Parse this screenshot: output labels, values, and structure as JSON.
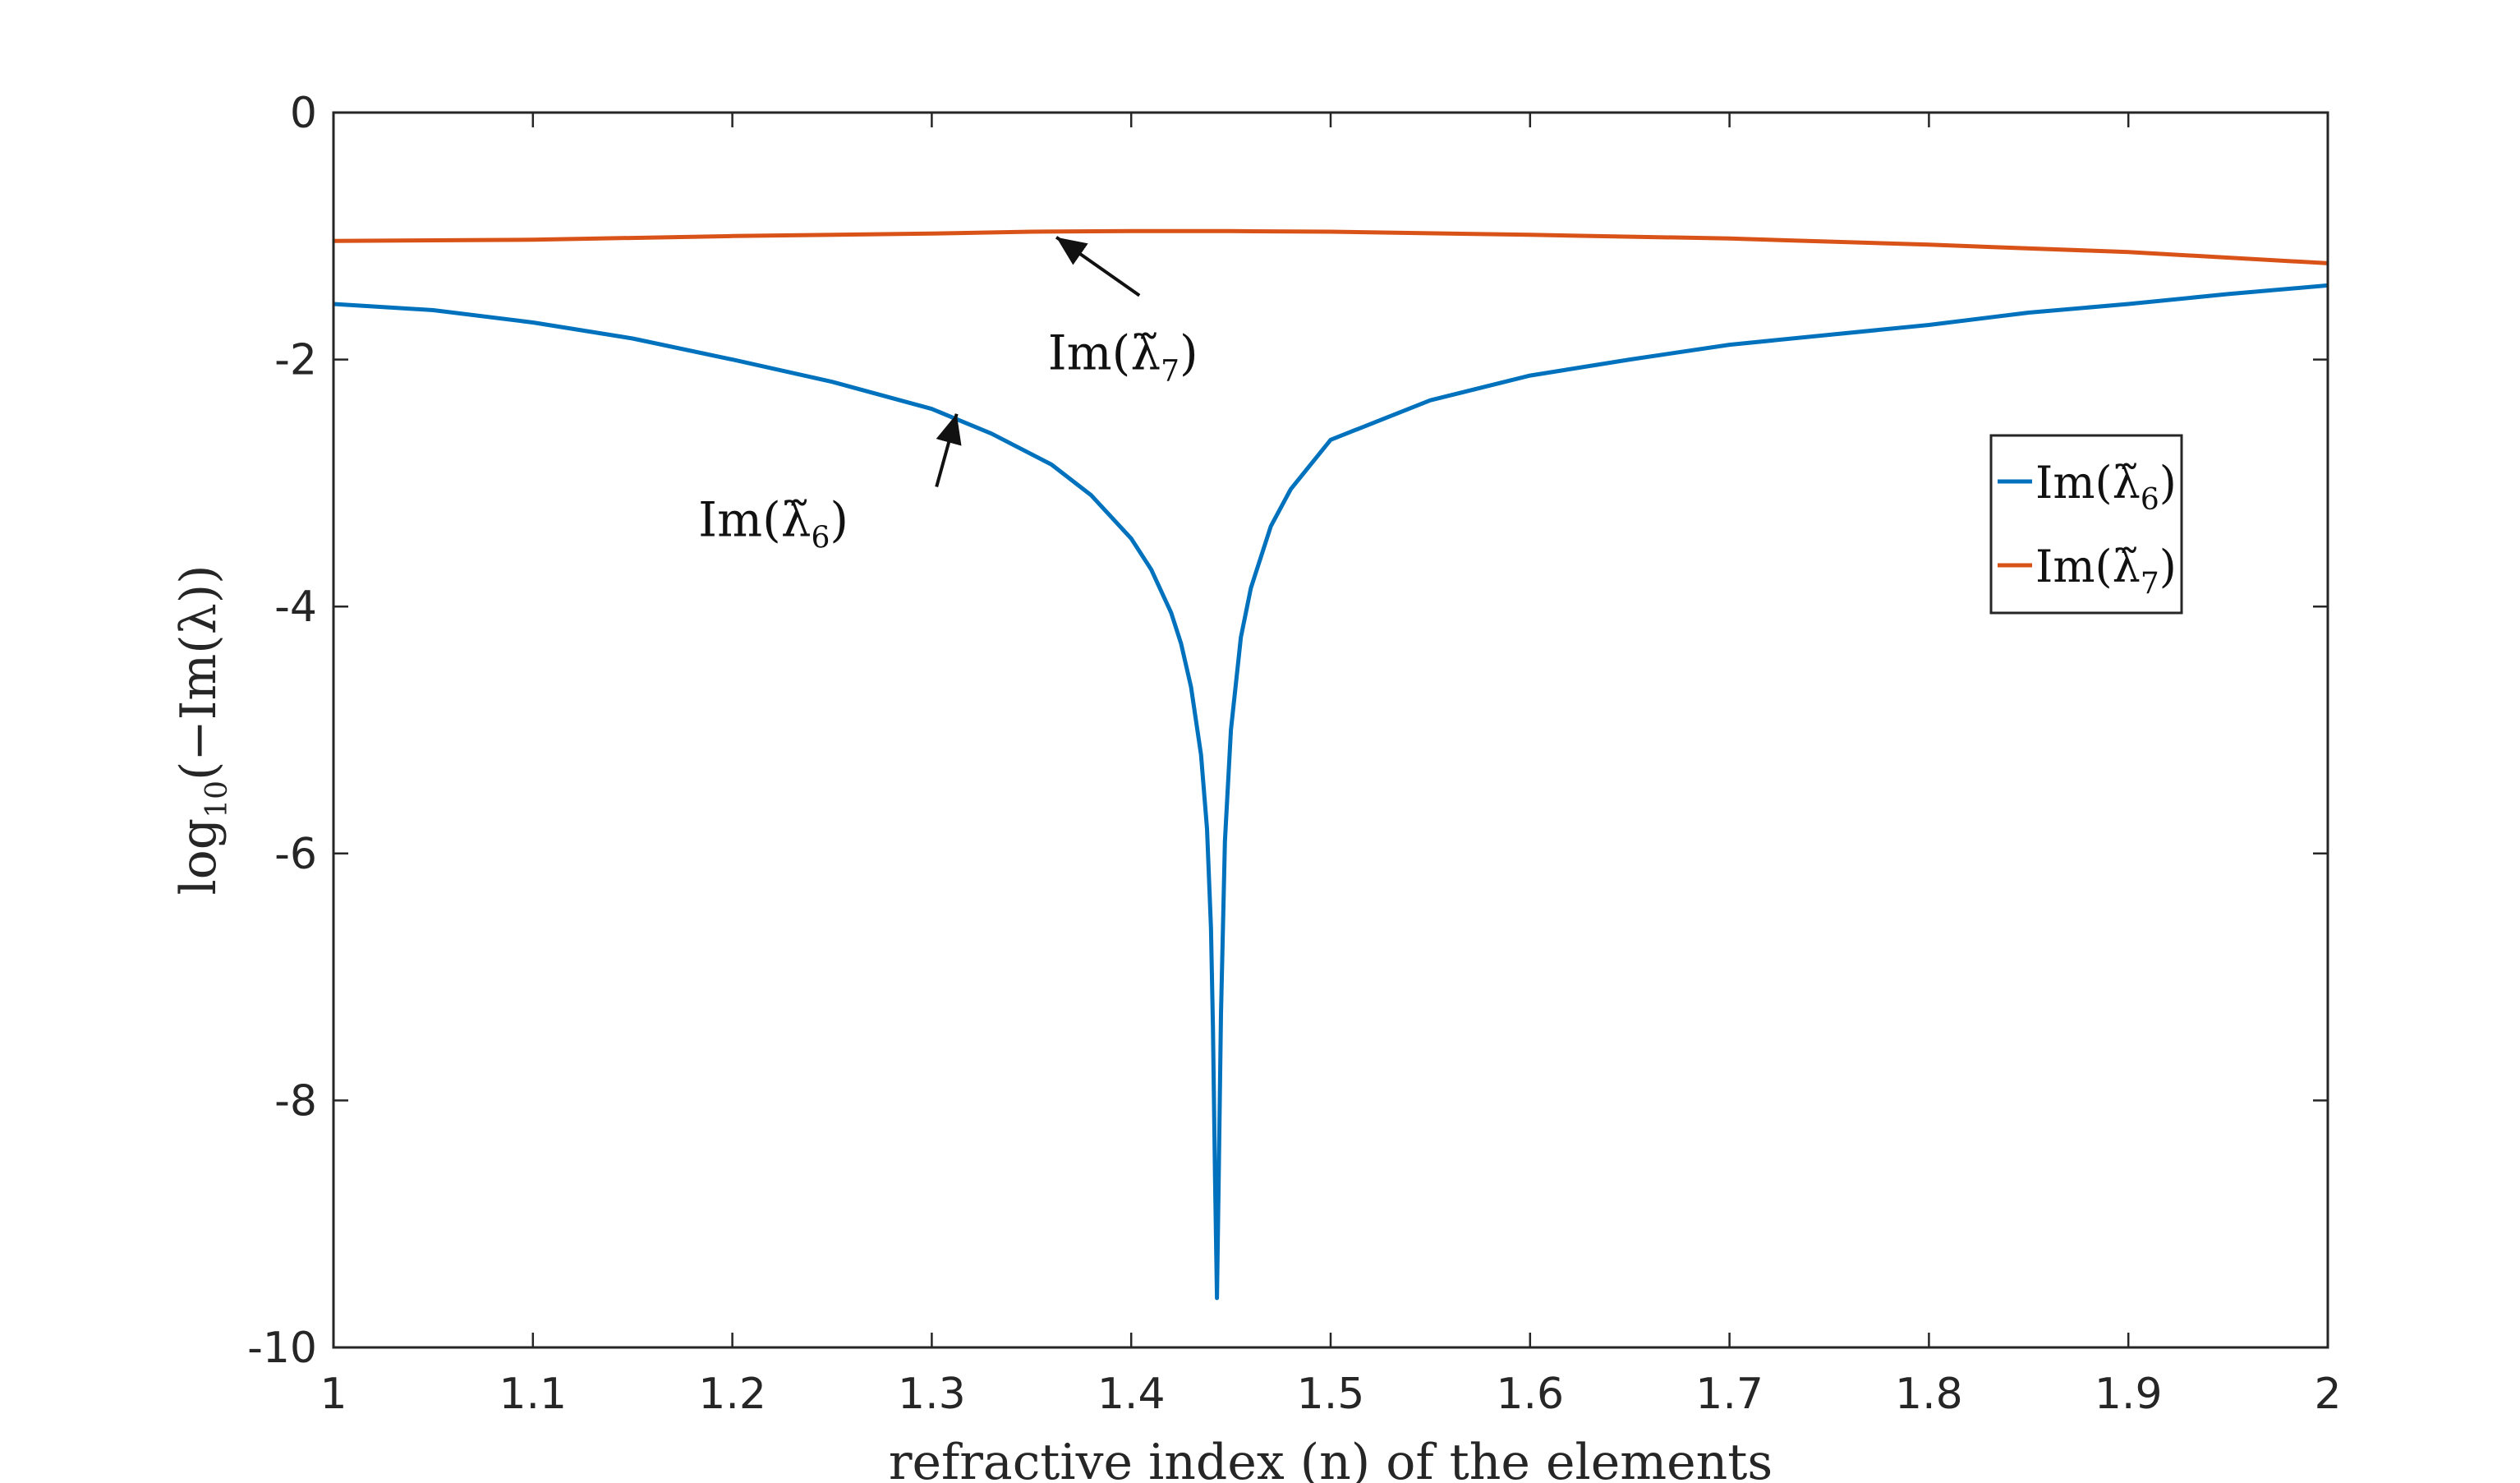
{
  "chart_data": {
    "type": "line",
    "title": "",
    "xlabel": "refractive index (n) of the elements",
    "ylabel": "log10(−Im(λ))",
    "xlim": [
      1,
      2
    ],
    "ylim": [
      -10,
      0
    ],
    "xticks": [
      1,
      1.1,
      1.2,
      1.3,
      1.4,
      1.5,
      1.6,
      1.7,
      1.8,
      1.9,
      2
    ],
    "xtick_labels": [
      "1",
      "1.1",
      "1.2",
      "1.3",
      "1.4",
      "1.5",
      "1.6",
      "1.7",
      "1.8",
      "1.9",
      "2"
    ],
    "yticks": [
      0,
      -2,
      -4,
      -6,
      -8,
      -10
    ],
    "ytick_labels": [
      "0",
      "-2",
      "-4",
      "-6",
      "-8",
      "-10"
    ],
    "grid": false,
    "legend_position": "top-right",
    "series": [
      {
        "name": "Im(λ̃6)",
        "label_base": "Im(",
        "label_symbol": "λ̃",
        "label_sub": "6",
        "label_close": ")",
        "color": "#0072BD",
        "x": [
          1.0,
          1.05,
          1.1,
          1.15,
          1.2,
          1.25,
          1.3,
          1.33,
          1.36,
          1.38,
          1.4,
          1.41,
          1.42,
          1.425,
          1.43,
          1.435,
          1.438,
          1.44,
          1.441,
          1.442,
          1.443,
          1.444,
          1.445,
          1.447,
          1.45,
          1.455,
          1.46,
          1.47,
          1.48,
          1.5,
          1.55,
          1.6,
          1.65,
          1.7,
          1.75,
          1.8,
          1.85,
          1.9,
          1.95,
          2.0
        ],
        "y": [
          -1.55,
          -1.6,
          -1.7,
          -1.83,
          -2.0,
          -2.18,
          -2.4,
          -2.6,
          -2.85,
          -3.1,
          -3.45,
          -3.7,
          -4.05,
          -4.3,
          -4.65,
          -5.2,
          -5.8,
          -6.6,
          -7.4,
          -8.6,
          -9.6,
          -8.5,
          -7.3,
          -5.9,
          -5.0,
          -4.25,
          -3.85,
          -3.35,
          -3.05,
          -2.65,
          -2.33,
          -2.13,
          -2.0,
          -1.88,
          -1.8,
          -1.72,
          -1.62,
          -1.55,
          -1.47,
          -1.4
        ]
      },
      {
        "name": "Im(λ̃7)",
        "label_base": "Im(",
        "label_symbol": "λ̃",
        "label_sub": "7",
        "label_close": ")",
        "color": "#D95319",
        "x": [
          1.0,
          1.1,
          1.2,
          1.3,
          1.35,
          1.4,
          1.45,
          1.5,
          1.6,
          1.7,
          1.8,
          1.9,
          2.0
        ],
        "y": [
          -1.04,
          -1.03,
          -1.0,
          -0.98,
          -0.965,
          -0.96,
          -0.96,
          -0.965,
          -0.99,
          -1.02,
          -1.07,
          -1.13,
          -1.22
        ]
      }
    ],
    "annotations": [
      {
        "label_base": "Im(",
        "label_symbol": "λ̃",
        "label_sub": "7",
        "label_close": ")",
        "point_x": 1.36,
        "point_y": -0.97,
        "text_x": 1.4,
        "text_y": -2.0
      },
      {
        "label_base": "Im(",
        "label_symbol": "λ̃",
        "label_sub": "6",
        "label_close": ")",
        "point_x": 1.31,
        "point_y": -2.4,
        "text_x": 1.22,
        "text_y": -3.35
      }
    ]
  }
}
